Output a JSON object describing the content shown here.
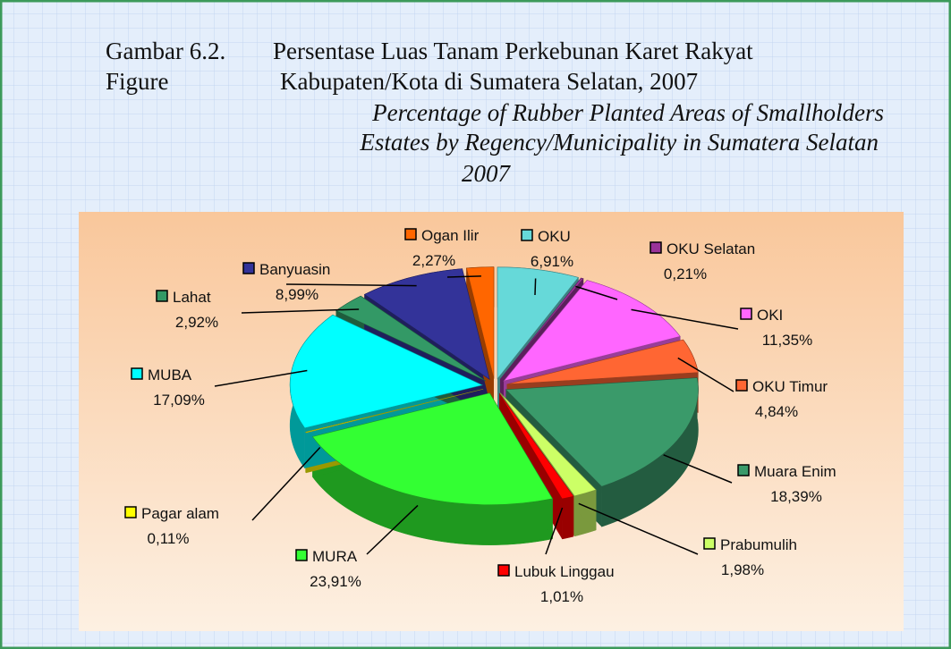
{
  "chart_data": {
    "type": "pie",
    "figure_labels": [
      "Gambar  6.2.",
      "Figure"
    ],
    "title": [
      "Persentase Luas Tanam Perkebunan Karet Rakyat",
      "Kabupaten/Kota di Sumatera Selatan, 2007"
    ],
    "subtitle": [
      "Percentage of Rubber Planted Areas of Smallholders",
      "Estates by Regency/Municipality in Sumatera Selatan",
      "2007"
    ],
    "categories": [
      "OKU",
      "OKU Selatan",
      "OKI",
      "OKU Timur",
      "Muara Enim",
      "Prabumulih",
      "Lubuk Linggau",
      "MURA",
      "Pagar alam",
      "MUBA",
      "Lahat",
      "Banyuasin",
      "Ogan Ilir"
    ],
    "values": [
      6.91,
      0.21,
      11.35,
      4.84,
      18.39,
      1.98,
      1.01,
      23.91,
      0.11,
      17.09,
      2.92,
      8.99,
      2.27
    ],
    "value_labels": [
      "6,91%",
      "0,21%",
      "11,35%",
      "4,84%",
      "18,39%",
      "1,98%",
      "1,01%",
      "23,91%",
      "0,11%",
      "17,09%",
      "2,92%",
      "8,99%",
      "2,27%"
    ],
    "colors": [
      "#66d9d9",
      "#993399",
      "#ff66ff",
      "#ff6633",
      "#3a9a6a",
      "#ccff66",
      "#ff0000",
      "#33ff33",
      "#ffff00",
      "#00ffff",
      "#339966",
      "#333399",
      "#ff6600"
    ]
  }
}
